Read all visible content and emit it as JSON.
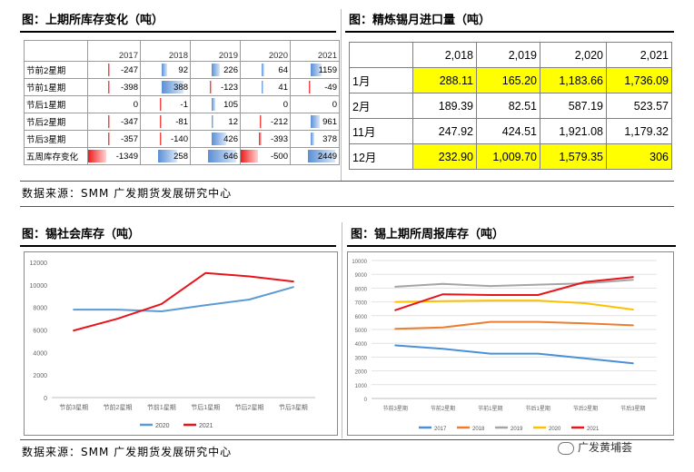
{
  "panels": {
    "top_left": {
      "title": "图：上期所库存变化（吨）"
    },
    "top_right": {
      "title": "图：精炼锡月进口量（吨）"
    },
    "bottom_left": {
      "title": "图：锡社会库存（吨）"
    },
    "bottom_right": {
      "title": "图：锡上期所周报库存（吨）"
    }
  },
  "source_text": "数据来源：SMM 广发期货发展研究中心",
  "watermark": "广发黄埔荟",
  "colors": {
    "bar_red": "#ee1c1c",
    "bar_blue": "#5b8fd6",
    "highlight": "#ffff00"
  },
  "chart_data": [
    {
      "type": "table",
      "title": "上期所库存变化（吨）",
      "columns": [
        "2017",
        "2018",
        "2019",
        "2020",
        "2021"
      ],
      "rows": [
        {
          "label": "节前2星期",
          "values": [
            -247,
            92,
            226,
            64,
            1159
          ]
        },
        {
          "label": "节前1星期",
          "values": [
            -398,
            388,
            -123,
            41,
            -49
          ]
        },
        {
          "label": "节后1星期",
          "values": [
            0,
            -1,
            105,
            0,
            0
          ]
        },
        {
          "label": "节后2星期",
          "values": [
            -347,
            -81,
            12,
            -212,
            961
          ]
        },
        {
          "label": "节后3星期",
          "values": [
            -357,
            -140,
            426,
            -393,
            378
          ]
        },
        {
          "label": "五周库存变化",
          "values": [
            -1349,
            258,
            646,
            -500,
            2449
          ]
        }
      ]
    },
    {
      "type": "table",
      "title": "精炼锡月进口量（吨）",
      "columns": [
        "2,018",
        "2,019",
        "2,020",
        "2,021"
      ],
      "rows": [
        {
          "label": "1月",
          "values": [
            "288.11",
            "165.20",
            "1,183.66",
            "1,736.09"
          ],
          "highlight": true
        },
        {
          "label": "2月",
          "values": [
            "189.39",
            "82.51",
            "587.19",
            "523.57"
          ],
          "highlight": false
        },
        {
          "label": "11月",
          "values": [
            "247.92",
            "424.51",
            "1,921.08",
            "1,179.32"
          ],
          "highlight": false
        },
        {
          "label": "12月",
          "values": [
            "232.90",
            "1,009.70",
            "1,579.35",
            "306"
          ],
          "highlight": true
        }
      ]
    },
    {
      "type": "line",
      "title": "锡社会库存（吨）",
      "categories": [
        "节前3星期",
        "节前2星期",
        "节前1星期",
        "节后1星期",
        "节后2星期",
        "节后3星期"
      ],
      "series": [
        {
          "name": "2020",
          "color": "#5b9bd5",
          "values": [
            7800,
            7800,
            7650,
            8200,
            8700,
            9800
          ]
        },
        {
          "name": "2021",
          "color": "#e8141b",
          "values": [
            5950,
            7000,
            8300,
            11050,
            10750,
            10300
          ]
        }
      ],
      "ylim": [
        0,
        12000
      ],
      "yticks": [
        0,
        2000,
        4000,
        6000,
        8000,
        10000,
        12000
      ],
      "legend": "bottom"
    },
    {
      "type": "line",
      "title": "锡上期所周报库存（吨）",
      "categories": [
        "节前3星期",
        "节前2星期",
        "节前1星期",
        "节后1星期",
        "节后2星期",
        "节后3星期"
      ],
      "series": [
        {
          "name": "2017",
          "color": "#4a90d9",
          "values": [
            3850,
            3600,
            3250,
            3250,
            2900,
            2550
          ]
        },
        {
          "name": "2018",
          "color": "#ed7d31",
          "values": [
            5050,
            5150,
            5550,
            5550,
            5450,
            5300
          ]
        },
        {
          "name": "2019",
          "color": "#a5a5a5",
          "values": [
            8100,
            8300,
            8150,
            8250,
            8350,
            8600
          ]
        },
        {
          "name": "2020",
          "color": "#ffc000",
          "values": [
            7000,
            7050,
            7100,
            7100,
            6900,
            6450
          ]
        },
        {
          "name": "2021",
          "color": "#e8141b",
          "values": [
            6400,
            7550,
            7500,
            7500,
            8450,
            8800
          ]
        }
      ],
      "ylim": [
        0,
        10000
      ],
      "yticks": [
        0,
        1000,
        2000,
        3000,
        4000,
        5000,
        6000,
        7000,
        8000,
        9000,
        10000
      ],
      "legend": "bottom"
    }
  ]
}
